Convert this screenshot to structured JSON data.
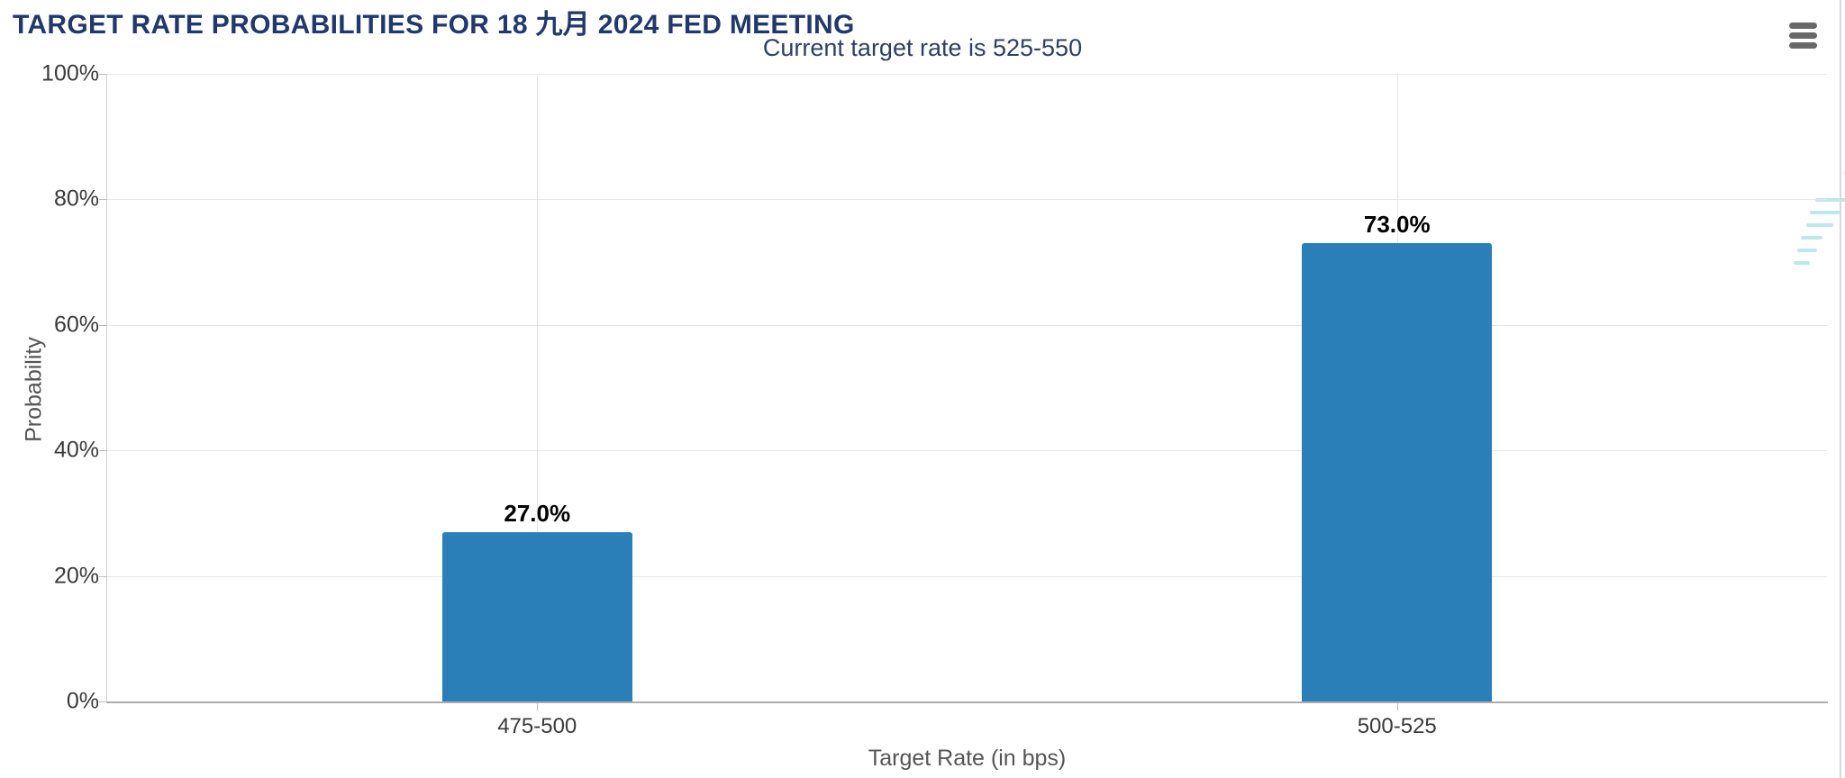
{
  "chart_data": {
    "type": "bar",
    "title": "TARGET RATE PROBABILITIES FOR 18 九月 2024 FED MEETING",
    "subtitle": "Current target rate is 525-550",
    "xlabel": "Target Rate (in bps)",
    "ylabel": "Probability",
    "categories": [
      "475-500",
      "500-525"
    ],
    "values": [
      27.0,
      73.0
    ],
    "data_labels": [
      "27.0%",
      "73.0%"
    ],
    "ytick_labels": [
      "0%",
      "20%",
      "40%",
      "60%",
      "80%",
      "100%"
    ],
    "ytick_values": [
      0,
      20,
      40,
      60,
      80,
      100
    ],
    "ylim": [
      0,
      100
    ],
    "grid": true,
    "legend": false
  },
  "menu": {
    "icon": "hamburger-icon"
  },
  "watermark": {
    "letter": "Q"
  },
  "colors": {
    "title": "#20386b",
    "subtitle": "#2e4066",
    "bar": "#2b7fb8",
    "gridline": "#e6e6e6",
    "axis_line": "#adadad",
    "tick_label": "#3a3a3a",
    "axis_title": "#555555",
    "data_label": "#000000",
    "watermark": "#d4d4d4",
    "menu_icon": "#686868",
    "watermark_lines": "#a9e0e8"
  }
}
